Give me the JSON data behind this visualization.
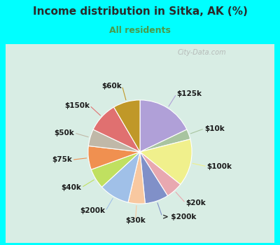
{
  "title": "Income distribution in Sitka, AK (%)",
  "subtitle": "All residents",
  "title_color": "#2a2a2a",
  "subtitle_color": "#4a9a4a",
  "bg_top": "#00FFFF",
  "bg_chart": "#ddf0e8",
  "watermark": "City-Data.com",
  "labels": [
    "$125k",
    "$10k",
    "$100k",
    "$20k",
    "> $200k",
    "$30k",
    "$200k",
    "$40k",
    "$75k",
    "$50k",
    "$150k",
    "$60k"
  ],
  "values": [
    17,
    3,
    14,
    5,
    7,
    5,
    9,
    6,
    7,
    5,
    9,
    8
  ],
  "colors": [
    "#b0a0d8",
    "#a8c4a0",
    "#f0f08c",
    "#e8a8b0",
    "#8090c8",
    "#f8c8a0",
    "#a0c0e8",
    "#c0e060",
    "#f09050",
    "#c0b8a8",
    "#e07070",
    "#c09828"
  ],
  "startangle": 90,
  "label_fontsize": 7.5
}
